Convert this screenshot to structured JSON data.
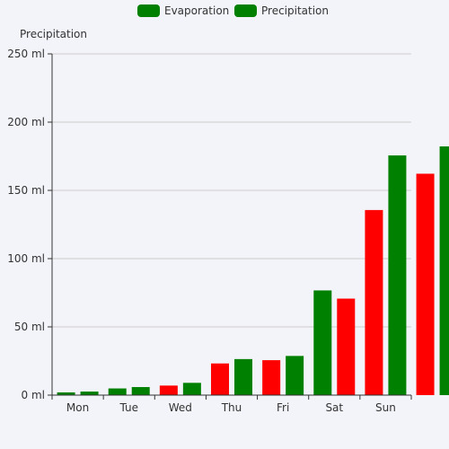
{
  "chart_data": {
    "type": "bar",
    "categories": [
      "Mon",
      "Tue",
      "Wed",
      "Thu",
      "Fri",
      "Sat",
      "Sun",
      ""
    ],
    "ylabel": "Precipitation",
    "ylim": [
      0,
      250
    ],
    "yticks": [
      "0 ml",
      "50 ml",
      "100 ml",
      "150 ml",
      "200 ml",
      "250 ml"
    ],
    "grid": true,
    "legend_position": "top-center",
    "legend": [
      "Evaporation",
      "Precipitation"
    ],
    "series": [
      {
        "name": "Evaporation",
        "values": [
          2.0,
          4.9,
          7.0,
          23.2,
          25.6,
          76.7,
          135.6,
          162.2
        ],
        "bar_colors": [
          "#008000",
          "#008000",
          "#ff0000",
          "#ff0000",
          "#ff0000",
          "#008000",
          "#ff0000",
          "#ff0000"
        ]
      },
      {
        "name": "Precipitation",
        "values": [
          2.6,
          5.9,
          9.0,
          26.4,
          28.7,
          70.7,
          175.6,
          182.2
        ],
        "bar_colors": [
          "#008000",
          "#008000",
          "#008000",
          "#008000",
          "#008000",
          "#ff0000",
          "#008000",
          "#008000"
        ]
      }
    ],
    "legend_color": "#008000",
    "axis_color": "#333333",
    "grid_color": "#cccccc"
  }
}
